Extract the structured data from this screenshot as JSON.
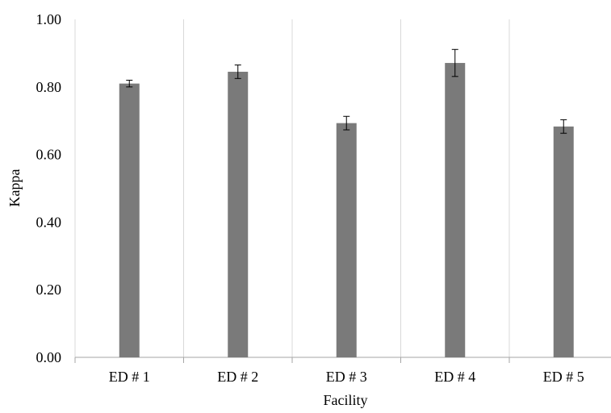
{
  "chart_data": {
    "type": "bar",
    "title": "",
    "xlabel": "Facility",
    "ylabel": "Kappa",
    "categories": [
      "ED # 1",
      "ED # 2",
      "ED # 3",
      "ED # 4",
      "ED # 5"
    ],
    "values": [
      0.81,
      0.845,
      0.693,
      0.871,
      0.683
    ],
    "error": [
      0.01,
      0.02,
      0.02,
      0.04,
      0.02
    ],
    "ylim": [
      0,
      1
    ],
    "yticks": [
      "0.00",
      "0.20",
      "0.40",
      "0.60",
      "0.80",
      "1.00"
    ],
    "grid": "vertical category separators",
    "legend": "none",
    "colors": {
      "bar": "#7a7a7a",
      "grid": "#d9d9d9",
      "axis": "#a6a6a6",
      "errorbar": "#000000"
    }
  }
}
